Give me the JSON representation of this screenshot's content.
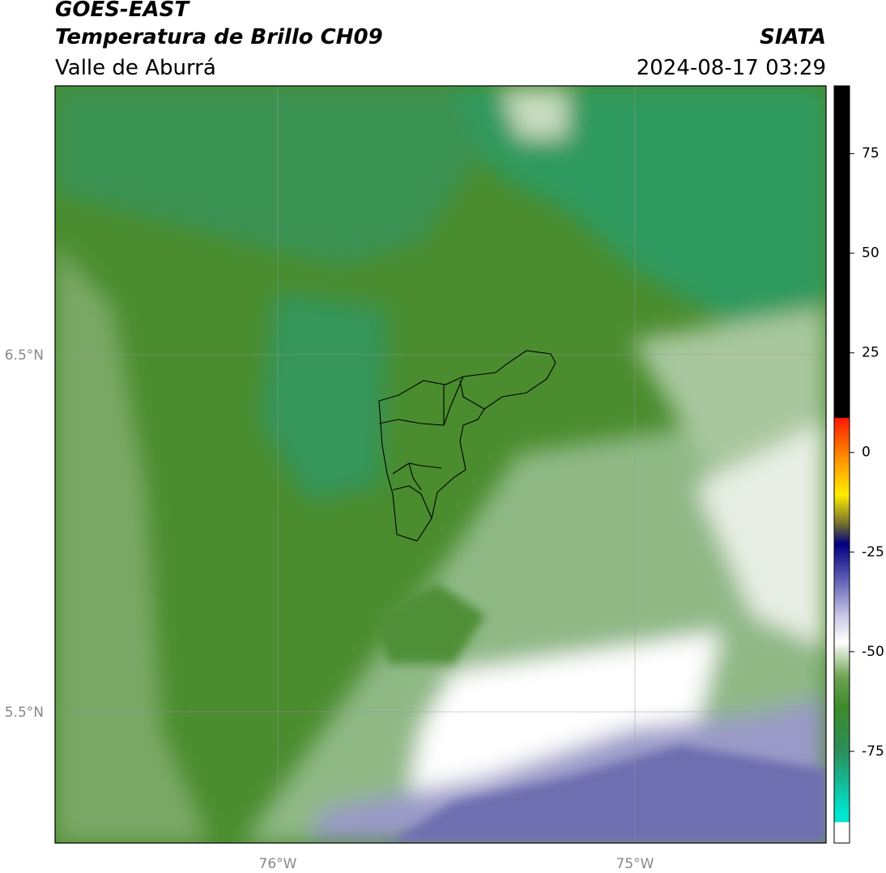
{
  "header": {
    "title": "GOES-EAST",
    "subtitle": "Temperatura de Brillo CH09",
    "source": "SIATA",
    "region": "Valle de Aburrá",
    "datetime": "2024-08-17 03:29"
  },
  "map": {
    "lat_labels": [
      "6.5°N",
      "5.5°N"
    ],
    "lon_labels": [
      "76°W",
      "75°W"
    ]
  },
  "colorbar": {
    "lim": [
      -98,
      92
    ],
    "ticks": [
      75,
      50,
      25,
      0,
      -25,
      -50,
      -75
    ]
  }
}
